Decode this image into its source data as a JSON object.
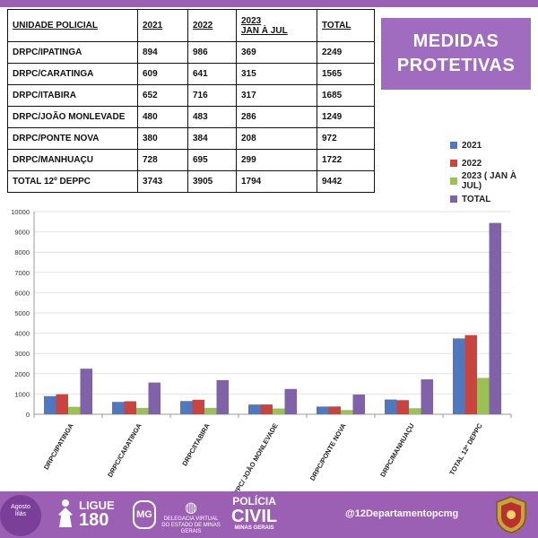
{
  "title": {
    "line1": "MEDIDAS",
    "line2": "PROTETIVAS"
  },
  "table": {
    "headers": [
      "UNIDADE   POLICIAL",
      "2021",
      "2022",
      "2023\nJAN À JUL",
      "TOTAL"
    ],
    "rows": [
      [
        "DRPC/IPATINGA",
        "894",
        "986",
        "369",
        "2249"
      ],
      [
        "DRPC/CARATINGA",
        "609",
        "641",
        "315",
        "1565"
      ],
      [
        "DRPC/ITABIRA",
        "652",
        "716",
        "317",
        "1685"
      ],
      [
        "DRPC/JOÃO MONLEVADE",
        "480",
        "483",
        "286",
        "1249"
      ],
      [
        "DRPC/PONTE NOVA",
        "380",
        "384",
        "208",
        "972"
      ],
      [
        "DRPC/MANHUAÇU",
        "728",
        "695",
        "299",
        "1722"
      ],
      [
        "TOTAL 12º DEPPC",
        "3743",
        "3905",
        "1794",
        "9442"
      ]
    ]
  },
  "chart_data": {
    "type": "bar",
    "categories": [
      "DRPC/IPATINGA",
      "DRPC/CARATINGA",
      "DRPC/ITABIRA",
      "DRPC/ JOÃO MONLEVADE",
      "DRPC/PONTE NOVA",
      "DRPC/MANHUAÇU",
      "TOTAL 12º DEPPC"
    ],
    "series": [
      {
        "name": "2021",
        "color": "#4f78be",
        "values": [
          894,
          609,
          652,
          480,
          380,
          728,
          3743
        ]
      },
      {
        "name": "2022",
        "color": "#c9433f",
        "values": [
          986,
          641,
          716,
          483,
          384,
          695,
          3905
        ]
      },
      {
        "name": "2023 ( JAN À JUL)",
        "color": "#9bc054",
        "values": [
          369,
          315,
          317,
          286,
          208,
          299,
          1794
        ]
      },
      {
        "name": "TOTAL",
        "color": "#8062a8",
        "values": [
          2249,
          1565,
          1685,
          1249,
          972,
          1722,
          9442
        ]
      }
    ],
    "ylim": [
      0,
      10000
    ],
    "yticks": [
      0,
      1000,
      2000,
      3000,
      4000,
      5000,
      6000,
      7000,
      8000,
      9000,
      10000
    ],
    "grid": true,
    "legend": "top-right"
  },
  "footer": {
    "lilas": "Agosto\nlilás",
    "ligue_line1": "LIGUE",
    "ligue_line2": "180",
    "mg": "MG",
    "delegacia_line1": "DELEGACIA VIRTUAL",
    "delegacia_line2": "DO ESTADO DE MINAS GERAIS",
    "policia_line1": "POLÍCIA",
    "policia_line2": "CIVIL",
    "policia_line3": "MINAS GERAIS",
    "handle": "@12Departamentopcmg"
  },
  "colors": {
    "accent": "#9b5fb4",
    "title_bg": "#a06cc0"
  }
}
